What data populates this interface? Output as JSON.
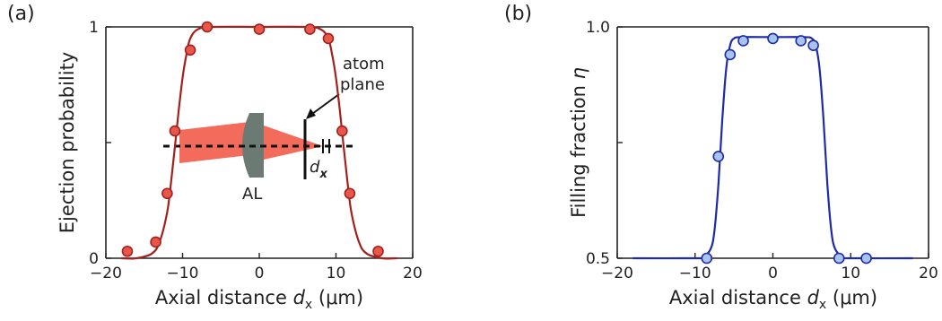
{
  "panels": [
    {
      "label": "(a)"
    },
    {
      "label": "(b)"
    }
  ],
  "inset": {
    "lens_label": "AL",
    "plane_label_line1": "atom",
    "plane_label_line2": "plane",
    "offset_symbol": "d",
    "offset_subscript": "x",
    "beam_color": "#f26b5b",
    "lens_color": "#6b7a73"
  },
  "chart_data": [
    {
      "type": "scatter",
      "panel": "(a)",
      "xlabel": "Axial distance d_x (μm)",
      "xlabel_parts": {
        "main": "Axial distance ",
        "var": "d",
        "sub": "x",
        "unit": " (μm)"
      },
      "ylabel": "Ejection probability",
      "xlim": [
        -20,
        20
      ],
      "ylim": [
        0,
        1
      ],
      "xticks": [
        -20,
        -10,
        0,
        10,
        20
      ],
      "xtick_labels": [
        "−20",
        "−10",
        "0",
        "10",
        "20"
      ],
      "yticks": [
        0,
        0.5,
        1
      ],
      "ytick_labels": [
        "0",
        "",
        "1"
      ],
      "grid": false,
      "color": "#a3211d",
      "marker_fill": "#e8574a",
      "series": [
        {
          "x": [
            -17.2,
            -13.5,
            -12.0,
            -11.0,
            -9.0,
            -6.8,
            0.0,
            6.6,
            9.0,
            10.8,
            11.8,
            15.5
          ],
          "y": [
            0.03,
            0.07,
            0.28,
            0.55,
            0.9,
            1.0,
            0.99,
            0.99,
            0.95,
            0.55,
            0.28,
            0.03
          ]
        }
      ],
      "fit": {
        "x": [
          -18,
          -16,
          -14,
          -13,
          -12,
          -11.5,
          -11,
          -10.5,
          -10,
          -9.5,
          -9,
          -8,
          -6,
          0,
          6,
          8,
          9,
          9.5,
          10,
          10.5,
          11,
          11.5,
          12,
          13,
          14,
          16,
          18
        ],
        "y": [
          0.0,
          0.0,
          0.02,
          0.07,
          0.2,
          0.33,
          0.48,
          0.64,
          0.78,
          0.88,
          0.95,
          0.99,
          1.0,
          1.0,
          1.0,
          0.99,
          0.95,
          0.88,
          0.78,
          0.64,
          0.48,
          0.33,
          0.2,
          0.07,
          0.02,
          0.0,
          0.0
        ]
      }
    },
    {
      "type": "scatter",
      "panel": "(b)",
      "xlabel": "Axial distance d_x (μm)",
      "xlabel_parts": {
        "main": "Axial distance ",
        "var": "d",
        "sub": "x",
        "unit": " (μm)"
      },
      "ylabel": "Filling fraction η",
      "ylabel_parts": {
        "main": "Filling fraction ",
        "var": "η"
      },
      "xlim": [
        -20,
        20
      ],
      "ylim": [
        0.5,
        1.0
      ],
      "xticks": [
        -20,
        -10,
        0,
        10,
        20
      ],
      "xtick_labels": [
        "−20",
        "−10",
        "0",
        "10",
        "20"
      ],
      "yticks": [
        0.5,
        0.75,
        1.0
      ],
      "ytick_labels": [
        "0.5",
        "",
        "1.0"
      ],
      "grid": false,
      "color": "#1f2aa8",
      "marker_fill": "#a9c4ec",
      "series": [
        {
          "x": [
            -8.5,
            -7.0,
            -5.5,
            -3.8,
            0.0,
            3.6,
            5.2,
            8.5,
            12.0
          ],
          "y": [
            0.5,
            0.72,
            0.94,
            0.97,
            0.975,
            0.97,
            0.96,
            0.5,
            0.5
          ]
        }
      ],
      "fit": {
        "x": [
          -18,
          -10,
          -9,
          -8,
          -7.5,
          -7,
          -6.5,
          -6,
          -5.5,
          -5,
          -4,
          0,
          4,
          5,
          5.5,
          6,
          6.5,
          7,
          7.5,
          8,
          9,
          10,
          18
        ],
        "y": [
          0.5,
          0.5,
          0.502,
          0.52,
          0.56,
          0.66,
          0.8,
          0.91,
          0.96,
          0.975,
          0.978,
          0.978,
          0.978,
          0.975,
          0.96,
          0.91,
          0.8,
          0.66,
          0.56,
          0.52,
          0.502,
          0.5,
          0.5
        ]
      }
    }
  ]
}
